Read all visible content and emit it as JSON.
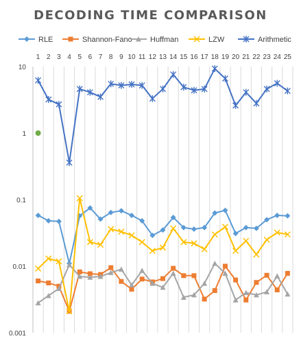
{
  "chart_data": {
    "type": "line",
    "title": "DECODING TIME COMPARISON",
    "xlabel": "",
    "ylabel": "",
    "y_scale": "log",
    "ylim": [
      0.001,
      10
    ],
    "y_ticks": [
      "0.001",
      "0.01",
      "0.1",
      "1",
      "10"
    ],
    "x_axis_position": "top",
    "grid": "vertical",
    "legend_position": "top",
    "categories": [
      "1",
      "2",
      "3",
      "4",
      "5",
      "6",
      "7",
      "8",
      "9",
      "10",
      "11",
      "12",
      "13",
      "14",
      "15",
      "16",
      "17",
      "18",
      "19",
      "20",
      "21",
      "22",
      "23",
      "24",
      "25"
    ],
    "series": [
      {
        "name": "RLE",
        "color": "#5b9bd5",
        "marker": "diamond",
        "values": [
          0.058,
          0.048,
          0.047,
          0.011,
          0.057,
          0.075,
          0.051,
          0.064,
          0.068,
          0.058,
          0.048,
          0.029,
          0.035,
          0.054,
          0.038,
          0.036,
          0.038,
          0.063,
          0.069,
          0.031,
          0.038,
          0.037,
          0.05,
          0.058,
          0.057
        ]
      },
      {
        "name": "Shannon-Fano",
        "color": "#ed7d31",
        "marker": "square",
        "values": [
          0.006,
          0.0056,
          0.005,
          0.0021,
          0.0082,
          0.0077,
          0.0075,
          0.0095,
          0.0059,
          0.0045,
          0.0064,
          0.0058,
          0.0065,
          0.0093,
          0.0072,
          0.0072,
          0.0032,
          0.0043,
          0.01,
          0.0062,
          0.0031,
          0.0057,
          0.0073,
          0.0044,
          0.0078
        ]
      },
      {
        "name": "Huffman",
        "color": "#a5a5a5",
        "marker": "triangle",
        "values": [
          0.0028,
          0.0036,
          0.0046,
          0.0105,
          0.007,
          0.0068,
          0.007,
          0.008,
          0.009,
          0.0052,
          0.0086,
          0.0055,
          0.0048,
          0.0078,
          0.0034,
          0.0037,
          0.0055,
          0.011,
          0.0078,
          0.0031,
          0.004,
          0.0037,
          0.0041,
          0.0071,
          0.0038
        ]
      },
      {
        "name": "LZW",
        "color": "#ffc000",
        "marker": "x",
        "values": [
          0.0092,
          0.013,
          0.0118,
          0.0021,
          0.105,
          0.023,
          0.021,
          0.036,
          0.033,
          0.029,
          0.023,
          0.017,
          0.019,
          0.037,
          0.023,
          0.022,
          0.018,
          0.03,
          0.039,
          0.017,
          0.024,
          0.015,
          0.025,
          0.032,
          0.03
        ]
      },
      {
        "name": "Arithmetic",
        "color": "#4472c4",
        "marker": "star",
        "values": [
          6.2,
          3.2,
          2.7,
          0.36,
          4.6,
          4.1,
          3.5,
          5.5,
          5.2,
          5.4,
          5.2,
          3.3,
          4.6,
          7.6,
          4.9,
          4.4,
          4.6,
          9.3,
          6.6,
          2.6,
          4.1,
          2.8,
          4.6,
          5.6,
          4.3
        ]
      }
    ],
    "annotations": [
      {
        "type": "point",
        "x": "1",
        "y": 1,
        "color": "#70ad47"
      }
    ]
  }
}
